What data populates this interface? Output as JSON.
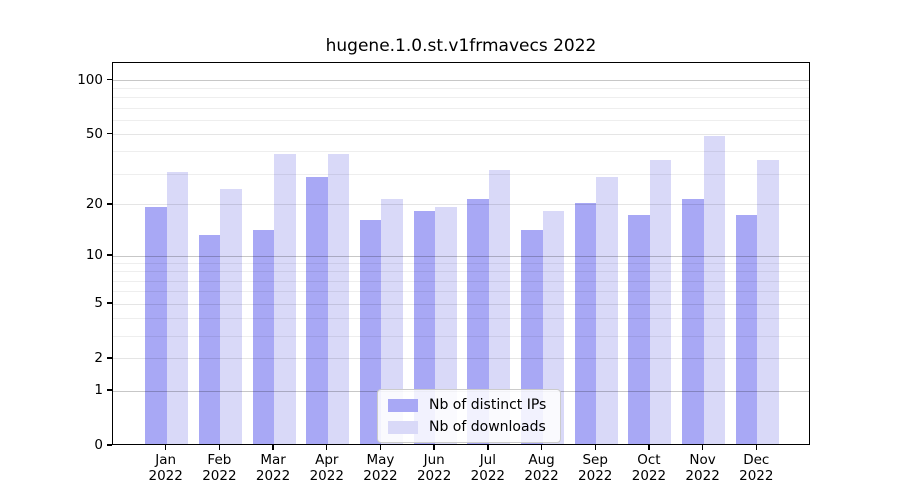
{
  "chart_data": {
    "type": "bar",
    "title": "hugene.1.0.st.v1frmavecs 2022",
    "categories": [
      "Jan",
      "Feb",
      "Mar",
      "Apr",
      "May",
      "Jun",
      "Jul",
      "Aug",
      "Sep",
      "Oct",
      "Nov",
      "Dec"
    ],
    "category_year": "2022",
    "series": [
      {
        "name": "Nb of distinct IPs",
        "color": "#a8a8f5",
        "values": [
          19,
          13,
          14,
          28,
          16,
          18,
          21,
          14,
          20,
          17,
          21,
          17
        ]
      },
      {
        "name": "Nb of downloads",
        "color": "#d9d9f8",
        "values": [
          30,
          24,
          38,
          38,
          21,
          19,
          31,
          18,
          28,
          35,
          48,
          35
        ]
      }
    ],
    "yscale": "log1p",
    "ylim": [
      0,
      125
    ],
    "yticks": [
      0,
      1,
      2,
      5,
      10,
      20,
      50,
      100
    ],
    "grid_values": [
      1,
      2,
      3,
      4,
      5,
      6,
      7,
      8,
      9,
      10,
      20,
      30,
      40,
      50,
      60,
      70,
      80,
      90,
      100
    ],
    "grid": true,
    "legend_position": "lower center",
    "axis_color": "#000000",
    "background_color": "#ffffff"
  }
}
